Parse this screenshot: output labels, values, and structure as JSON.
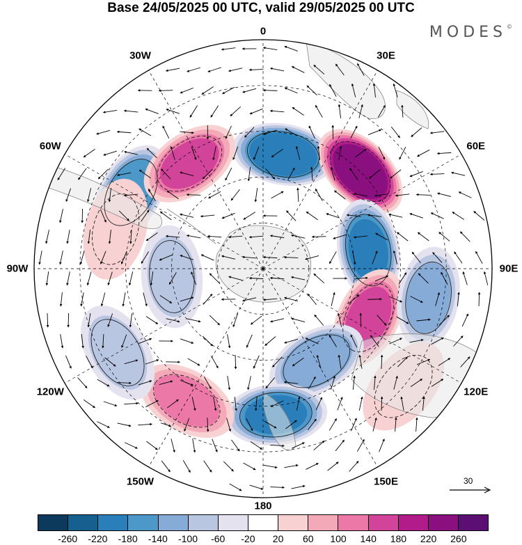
{
  "title": "Base 24/05/2025 00 UTC, valid 29/05/2025 00 UTC",
  "brand": "MODES",
  "brand_mark": "©",
  "longitude_labels": [
    {
      "lon": 0,
      "text": "0"
    },
    {
      "lon": 30,
      "text": "30E"
    },
    {
      "lon": 60,
      "text": "60E"
    },
    {
      "lon": 90,
      "text": "90E"
    },
    {
      "lon": 120,
      "text": "120E"
    },
    {
      "lon": 150,
      "text": "150E"
    },
    {
      "lon": 180,
      "text": "180"
    },
    {
      "lon": -150,
      "text": "150W"
    },
    {
      "lon": -120,
      "text": "120W"
    },
    {
      "lon": -90,
      "text": "90W"
    },
    {
      "lon": -60,
      "text": "60W"
    },
    {
      "lon": -30,
      "text": "30W"
    }
  ],
  "reference_vector": {
    "label": "30"
  },
  "colorbar": {
    "levels": [
      "-260",
      "-220",
      "-180",
      "-140",
      "-100",
      "-60",
      "-20",
      "20",
      "60",
      "100",
      "140",
      "180",
      "220",
      "260"
    ],
    "colors": [
      "#0b3a5c",
      "#15608f",
      "#2a7fba",
      "#4b98c9",
      "#86abd6",
      "#b9c6e2",
      "#e4e2ef",
      "#ffffff",
      "#f8d2d3",
      "#f3a9b8",
      "#eb78a7",
      "#d2439a",
      "#b21b8a",
      "#8a1080",
      "#5b0f74"
    ]
  },
  "chart_data": {
    "type": "map",
    "projection": "south polar stereographic",
    "field": "anomaly",
    "value_range": [
      -260,
      260
    ],
    "anomaly_centers": [
      {
        "lon": 10,
        "lat": -52,
        "value": -220
      },
      {
        "lon": 45,
        "lat": -45,
        "value": 260
      },
      {
        "lon": 80,
        "lat": -55,
        "value": -210
      },
      {
        "lon": 115,
        "lat": -52,
        "value": 150
      },
      {
        "lon": 100,
        "lat": -35,
        "value": -110
      },
      {
        "lon": 150,
        "lat": -55,
        "value": -140
      },
      {
        "lon": 175,
        "lat": -42,
        "value": -200
      },
      {
        "lon": -150,
        "lat": -40,
        "value": 120
      },
      {
        "lon": -120,
        "lat": -35,
        "value": -90
      },
      {
        "lon": -60,
        "lat": -40,
        "value": -180
      },
      {
        "lon": -35,
        "lat": -48,
        "value": 170
      },
      {
        "lon": -95,
        "lat": -60,
        "value": -90
      },
      {
        "lon": 130,
        "lat": -30,
        "value": 60
      },
      {
        "lon": -75,
        "lat": -40,
        "value": 50
      }
    ]
  }
}
